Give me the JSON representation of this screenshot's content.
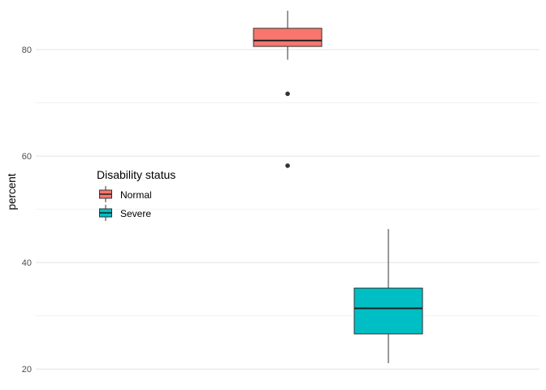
{
  "chart_data": {
    "type": "box",
    "ylabel": "percent",
    "xlabel": "",
    "ylim": [
      18.2,
      88.4
    ],
    "y_ticks": [
      20,
      40,
      60,
      80
    ],
    "grid": true,
    "legend": {
      "title": "Disability status",
      "placement": "inside-left",
      "entries": [
        {
          "label": "Normal",
          "color": "#F8766D"
        },
        {
          "label": "Severe",
          "color": "#00BFC4"
        }
      ]
    },
    "series": [
      {
        "name": "Normal",
        "color": "#F8766D",
        "x": 0.5,
        "whisker_low": 78.1,
        "q1": 80.6,
        "median": 81.7,
        "q3": 84.0,
        "whisker_high": 87.3,
        "outliers": [
          71.7,
          58.2
        ]
      },
      {
        "name": "Severe",
        "color": "#00BFC4",
        "x": 0.7,
        "whisker_low": 21.1,
        "q1": 26.6,
        "median": 31.4,
        "q3": 35.2,
        "whisker_high": 46.3,
        "outliers": []
      }
    ]
  }
}
